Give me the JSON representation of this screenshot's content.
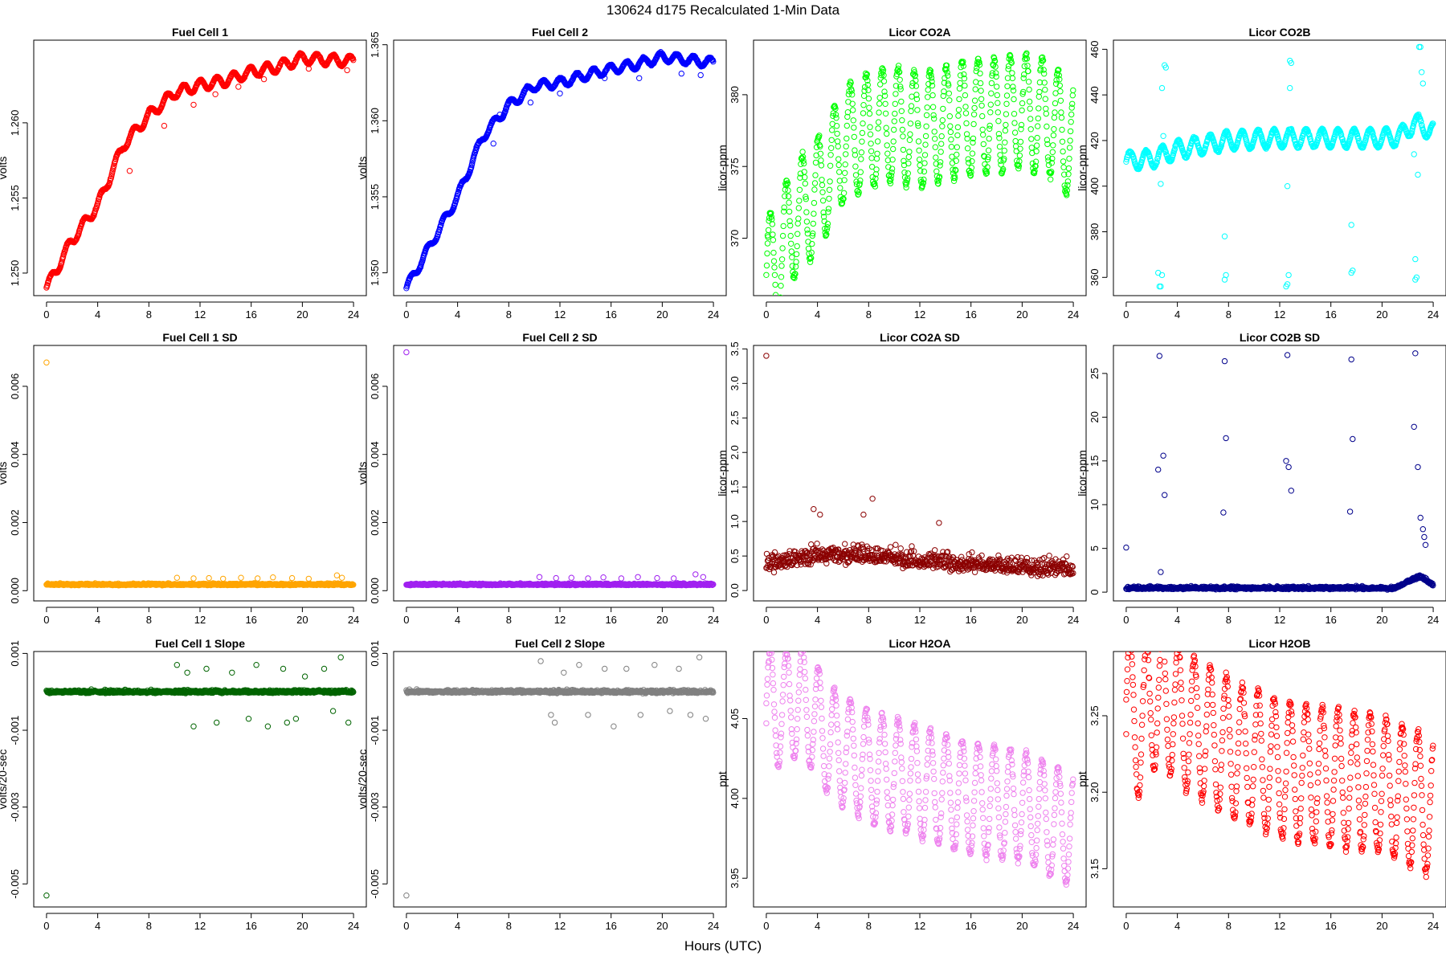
{
  "figure": {
    "title": "130624    d175    Recalculated 1-Min Data",
    "xlabel": "Hours (UTC)"
  },
  "chart_data": [
    {
      "type": "scatter",
      "title": "Fuel Cell 1",
      "ylabel": "volts",
      "color": "#ff0000",
      "xticks": [
        0,
        4,
        8,
        12,
        16,
        20,
        24
      ],
      "xlim": [
        -1,
        25
      ],
      "yticks": [
        1.25,
        1.255,
        1.26
      ],
      "ytick_labels": [
        "1.250",
        "1.255",
        "1.260"
      ],
      "ylim": [
        1.2485,
        1.2655
      ],
      "n": 1440,
      "base": [
        [
          0,
          1.249
        ],
        [
          2,
          1.2522
        ],
        [
          4,
          1.2545
        ],
        [
          6,
          1.2585
        ],
        [
          8,
          1.2605
        ],
        [
          10,
          1.262
        ],
        [
          12,
          1.2625
        ],
        [
          14,
          1.2628
        ],
        [
          16,
          1.2634
        ],
        [
          18,
          1.2637
        ],
        [
          20,
          1.2643
        ],
        [
          22,
          1.2642
        ],
        [
          24,
          1.2641
        ]
      ],
      "osc": {
        "amp": 0.00035,
        "period": 1.3
      },
      "outliers": [
        [
          6.5,
          1.2568
        ],
        [
          9.2,
          1.2598
        ],
        [
          11.5,
          1.2612
        ],
        [
          13.2,
          1.2619
        ],
        [
          17,
          1.2629
        ],
        [
          20.5,
          1.2636
        ],
        [
          23.5,
          1.2635
        ],
        [
          15,
          1.2624
        ]
      ]
    },
    {
      "type": "scatter",
      "title": "Fuel Cell 2",
      "ylabel": "volts",
      "color": "#0000ff",
      "xticks": [
        0,
        4,
        8,
        12,
        16,
        20,
        24
      ],
      "xlim": [
        -1,
        25
      ],
      "yticks": [
        1.35,
        1.355,
        1.36,
        1.365
      ],
      "ytick_labels": [
        "1.350",
        "1.355",
        "1.360",
        "1.365"
      ],
      "ylim": [
        1.3485,
        1.3653
      ],
      "n": 1440,
      "base": [
        [
          0,
          1.349
        ],
        [
          2,
          1.352
        ],
        [
          4,
          1.355
        ],
        [
          6,
          1.359
        ],
        [
          8,
          1.361
        ],
        [
          10,
          1.3623
        ],
        [
          12,
          1.3625
        ],
        [
          14,
          1.363
        ],
        [
          16,
          1.3634
        ],
        [
          18,
          1.3637
        ],
        [
          20,
          1.3642
        ],
        [
          22,
          1.364
        ],
        [
          24,
          1.3638
        ]
      ],
      "osc": {
        "amp": 0.0003,
        "period": 1.3
      },
      "outliers": [
        [
          7.3,
          1.3604
        ],
        [
          9.7,
          1.3612
        ],
        [
          12,
          1.3618
        ],
        [
          15.5,
          1.3628
        ],
        [
          18.2,
          1.3628
        ],
        [
          21.5,
          1.3631
        ],
        [
          23,
          1.363
        ],
        [
          6.8,
          1.3585
        ]
      ]
    },
    {
      "type": "scatter",
      "title": "Licor CO2A",
      "ylabel": "licor-ppm",
      "color": "#00ff00",
      "xticks": [
        0,
        4,
        8,
        12,
        16,
        20,
        24
      ],
      "xlim": [
        -1,
        25
      ],
      "yticks": [
        370,
        375,
        380
      ],
      "ytick_labels": [
        "370",
        "375",
        "380"
      ],
      "ylim": [
        366.0,
        383.8
      ],
      "n": 1440,
      "base": [
        [
          0,
          367.5
        ],
        [
          1,
          368.5
        ],
        [
          2,
          371
        ],
        [
          4,
          373
        ],
        [
          6,
          376.5
        ],
        [
          8,
          377.5
        ],
        [
          10,
          378
        ],
        [
          12,
          377.5
        ],
        [
          14,
          378
        ],
        [
          16,
          378.5
        ],
        [
          18,
          378.5
        ],
        [
          20,
          379
        ],
        [
          21,
          378.5
        ],
        [
          22,
          378.5
        ],
        [
          24,
          376.5
        ]
      ],
      "osc": {
        "amp": 4.0,
        "period": 1.25
      },
      "outliers": [
        [
          0.1,
          370.2
        ]
      ]
    },
    {
      "type": "scatter",
      "title": "Licor CO2B",
      "ylabel": "licor-ppm",
      "color": "#00ffff",
      "xticks": [
        0,
        4,
        8,
        12,
        16,
        20,
        24
      ],
      "xlim": [
        -1,
        25
      ],
      "yticks": [
        360,
        380,
        400,
        420,
        440,
        460
      ],
      "ytick_labels": [
        "360",
        "380",
        "400",
        "420",
        "440",
        "460"
      ],
      "ylim": [
        352,
        464
      ],
      "n": 1440,
      "base": [
        [
          0,
          411
        ],
        [
          2,
          412
        ],
        [
          4,
          416
        ],
        [
          8,
          420
        ],
        [
          12,
          421
        ],
        [
          16,
          421
        ],
        [
          20,
          421
        ],
        [
          21.5,
          422
        ],
        [
          22.5,
          428
        ],
        [
          24,
          424
        ]
      ],
      "osc": {
        "amp": 4.0,
        "period": 1.25
      },
      "outliers": [
        [
          2.6,
          356
        ],
        [
          2.7,
          356
        ],
        [
          2.5,
          362
        ],
        [
          2.8,
          361
        ],
        [
          2.9,
          422
        ],
        [
          3.0,
          453
        ],
        [
          3.1,
          452
        ],
        [
          2.7,
          401
        ],
        [
          2.8,
          443
        ],
        [
          7.7,
          359
        ],
        [
          7.8,
          361
        ],
        [
          7.7,
          378
        ],
        [
          12.6,
          357
        ],
        [
          12.5,
          356
        ],
        [
          12.7,
          361
        ],
        [
          12.6,
          400
        ],
        [
          12.8,
          443
        ],
        [
          12.9,
          454
        ],
        [
          12.8,
          455
        ],
        [
          17.6,
          362
        ],
        [
          17.7,
          363
        ],
        [
          17.6,
          383
        ],
        [
          22.6,
          359
        ],
        [
          22.7,
          360
        ],
        [
          22.6,
          368
        ],
        [
          22.8,
          405
        ],
        [
          22.9,
          461
        ],
        [
          23.0,
          461
        ],
        [
          23.1,
          450
        ],
        [
          23.2,
          445
        ],
        [
          22.5,
          414
        ]
      ]
    },
    {
      "type": "scatter",
      "title": "Fuel Cell 1 SD",
      "ylabel": "volts",
      "color": "#ffa500",
      "xticks": [
        0,
        4,
        8,
        12,
        16,
        20,
        24
      ],
      "xlim": [
        -1,
        25
      ],
      "yticks": [
        0.0,
        0.002,
        0.004,
        0.006
      ],
      "ytick_labels": [
        "0.000",
        "0.002",
        "0.004",
        "0.006"
      ],
      "ylim": [
        -0.0003,
        0.0072
      ],
      "n": 1440,
      "base": [
        [
          0,
          0.00018
        ],
        [
          24,
          0.00018
        ]
      ],
      "noise": 4e-05,
      "outliers": [
        [
          0,
          0.0067
        ],
        [
          10.2,
          0.00038
        ],
        [
          11.5,
          0.00036
        ],
        [
          12.7,
          0.00037
        ],
        [
          13.8,
          0.00035
        ],
        [
          15.2,
          0.00038
        ],
        [
          16.5,
          0.00036
        ],
        [
          17.7,
          0.00039
        ],
        [
          19.2,
          0.00037
        ],
        [
          20.5,
          0.00035
        ],
        [
          22.7,
          0.00045
        ],
        [
          23.1,
          0.00038
        ]
      ]
    },
    {
      "type": "scatter",
      "title": "Fuel Cell 2 SD",
      "ylabel": "volts",
      "color": "#a020f0",
      "xticks": [
        0,
        4,
        8,
        12,
        16,
        20,
        24
      ],
      "xlim": [
        -1,
        25
      ],
      "yticks": [
        0.0,
        0.002,
        0.004,
        0.006
      ],
      "ytick_labels": [
        "0.000",
        "0.002",
        "0.004",
        "0.006"
      ],
      "ylim": [
        -0.0003,
        0.0072
      ],
      "n": 1440,
      "base": [
        [
          0,
          0.00018
        ],
        [
          24,
          0.00018
        ]
      ],
      "noise": 4e-05,
      "outliers": [
        [
          0,
          0.007
        ],
        [
          10.4,
          0.0004
        ],
        [
          11.7,
          0.00037
        ],
        [
          12.9,
          0.00038
        ],
        [
          14.2,
          0.00036
        ],
        [
          15.4,
          0.00039
        ],
        [
          16.8,
          0.00036
        ],
        [
          18.1,
          0.0004
        ],
        [
          19.6,
          0.00037
        ],
        [
          20.9,
          0.00036
        ],
        [
          22.6,
          0.00048
        ],
        [
          23.2,
          0.0004
        ]
      ]
    },
    {
      "type": "scatter",
      "title": "Licor CO2A SD",
      "ylabel": "licor-ppm",
      "color": "#8b0000",
      "xticks": [
        0,
        4,
        8,
        12,
        16,
        20,
        24
      ],
      "xlim": [
        -1,
        25
      ],
      "yticks": [
        0.0,
        0.5,
        1.0,
        1.5,
        2.0,
        2.5,
        3.0,
        3.5
      ],
      "ytick_labels": [
        "0.0",
        "0.5",
        "1.0",
        "1.5",
        "2.0",
        "2.5",
        "3.0",
        "3.5"
      ],
      "ylim": [
        -0.15,
        3.55
      ],
      "n": 1440,
      "base": [
        [
          0,
          0.35
        ],
        [
          4,
          0.5
        ],
        [
          8,
          0.5
        ],
        [
          12,
          0.42
        ],
        [
          16,
          0.38
        ],
        [
          20,
          0.32
        ],
        [
          24,
          0.3
        ]
      ],
      "noise": 0.2,
      "outliers": [
        [
          0,
          3.4
        ],
        [
          8.3,
          1.33
        ],
        [
          3.7,
          1.18
        ],
        [
          7.6,
          1.1
        ],
        [
          13.5,
          0.98
        ],
        [
          4.2,
          1.1
        ]
      ]
    },
    {
      "type": "scatter",
      "title": "Licor CO2B SD",
      "ylabel": "licor-ppm",
      "color": "#00008b",
      "xticks": [
        0,
        4,
        8,
        12,
        16,
        20,
        24
      ],
      "xlim": [
        -1,
        25
      ],
      "yticks": [
        0,
        5,
        10,
        15,
        20,
        25
      ],
      "ytick_labels": [
        "0",
        "5",
        "10",
        "15",
        "20",
        "25"
      ],
      "ylim": [
        -1.0,
        28.2
      ],
      "n": 1440,
      "base": [
        [
          0,
          0.45
        ],
        [
          21,
          0.45
        ],
        [
          22,
          1.2
        ],
        [
          23,
          1.8
        ],
        [
          24,
          0.8
        ]
      ],
      "noise": 0.25,
      "outliers": [
        [
          0,
          5.1
        ],
        [
          2.6,
          27.0
        ],
        [
          2.5,
          14.0
        ],
        [
          2.9,
          15.6
        ],
        [
          3.0,
          11.1
        ],
        [
          2.7,
          2.3
        ],
        [
          7.7,
          26.4
        ],
        [
          7.8,
          17.6
        ],
        [
          7.6,
          9.1
        ],
        [
          12.6,
          27.1
        ],
        [
          12.5,
          15.0
        ],
        [
          12.7,
          14.3
        ],
        [
          12.9,
          11.6
        ],
        [
          17.6,
          26.6
        ],
        [
          17.7,
          17.5
        ],
        [
          17.5,
          9.2
        ],
        [
          22.6,
          27.3
        ],
        [
          22.5,
          18.9
        ],
        [
          22.8,
          14.3
        ],
        [
          23.0,
          8.5
        ],
        [
          23.2,
          7.2
        ],
        [
          23.3,
          6.3
        ],
        [
          23.4,
          5.4
        ]
      ]
    },
    {
      "type": "scatter",
      "title": "Fuel Cell 1 Slope",
      "ylabel": "volts/20-sec",
      "color": "#006400",
      "xticks": [
        0,
        4,
        8,
        12,
        16,
        20,
        24
      ],
      "xlim": [
        -1,
        25
      ],
      "yticks": [
        -0.005,
        -0.003,
        -0.001,
        0.001
      ],
      "ytick_labels": [
        "-0.005",
        "-0.003",
        "-0.001",
        "0.001"
      ],
      "ylim": [
        -0.0056,
        0.00105
      ],
      "n": 1440,
      "base": [
        [
          0,
          0.0
        ],
        [
          24,
          0.0
        ]
      ],
      "noise": 6e-05,
      "outliers": [
        [
          0,
          -0.0053
        ],
        [
          10.2,
          0.0007
        ],
        [
          11.5,
          -0.0009
        ],
        [
          12.5,
          0.0006
        ],
        [
          13.3,
          -0.0008
        ],
        [
          14.5,
          0.0005
        ],
        [
          15.8,
          -0.0007
        ],
        [
          16.4,
          0.0007
        ],
        [
          17.3,
          -0.0009
        ],
        [
          18.5,
          0.0006
        ],
        [
          19.5,
          -0.0007
        ],
        [
          20.2,
          0.0004
        ],
        [
          21.7,
          0.0006
        ],
        [
          22.4,
          -0.0005
        ],
        [
          23.0,
          0.0009
        ],
        [
          23.6,
          -0.0008
        ],
        [
          11.0,
          0.0005
        ],
        [
          18.8,
          -0.0008
        ]
      ]
    },
    {
      "type": "scatter",
      "title": "Fuel Cell 2 Slope",
      "ylabel": "volts/20-sec",
      "color": "#808080",
      "xticks": [
        0,
        4,
        8,
        12,
        16,
        20,
        24
      ],
      "xlim": [
        -1,
        25
      ],
      "yticks": [
        -0.005,
        -0.003,
        -0.001,
        0.001
      ],
      "ytick_labels": [
        "-0.005",
        "-0.003",
        "-0.001",
        "0.001"
      ],
      "ylim": [
        -0.0056,
        0.00105
      ],
      "n": 1440,
      "base": [
        [
          0,
          0.0
        ],
        [
          24,
          0.0
        ]
      ],
      "noise": 6e-05,
      "outliers": [
        [
          0,
          -0.0053
        ],
        [
          10.5,
          0.0008
        ],
        [
          11.6,
          -0.0008
        ],
        [
          12.3,
          0.0005
        ],
        [
          13.5,
          0.0007
        ],
        [
          14.2,
          -0.0006
        ],
        [
          15.5,
          0.0006
        ],
        [
          16.2,
          -0.0009
        ],
        [
          17.2,
          0.0006
        ],
        [
          18.3,
          -0.0006
        ],
        [
          19.4,
          0.0007
        ],
        [
          20.6,
          -0.0005
        ],
        [
          21.3,
          0.0006
        ],
        [
          22.2,
          -0.0006
        ],
        [
          22.9,
          0.0009
        ],
        [
          23.4,
          -0.0007
        ],
        [
          11.3,
          -0.0006
        ]
      ]
    },
    {
      "type": "scatter",
      "title": "Licor H2OA",
      "ylabel": "ppt",
      "color": "#ee82ee",
      "xticks": [
        0,
        4,
        8,
        12,
        16,
        20,
        24
      ],
      "xlim": [
        -1,
        25
      ],
      "yticks": [
        3.95,
        4.0,
        4.05
      ],
      "ytick_labels": [
        "3.95",
        "4.00",
        "4.05"
      ],
      "ylim": [
        3.932,
        4.092
      ],
      "n": 1440,
      "base": [
        [
          0,
          4.06
        ],
        [
          1,
          4.055
        ],
        [
          2,
          4.06
        ],
        [
          3,
          4.06
        ],
        [
          5,
          4.035
        ],
        [
          8,
          4.02
        ],
        [
          12,
          4.01
        ],
        [
          16,
          4.0
        ],
        [
          20,
          3.995
        ],
        [
          24,
          3.98
        ]
      ],
      "osc": {
        "amp": 0.035,
        "period": 1.25
      },
      "outliers": [
        [
          0,
          4.047
        ]
      ]
    },
    {
      "type": "scatter",
      "title": "Licor H2OB",
      "ylabel": "ppt",
      "color": "#ff0000",
      "xticks": [
        0,
        4,
        8,
        12,
        16,
        20,
        24
      ],
      "xlim": [
        -1,
        25
      ],
      "yticks": [
        3.15,
        3.2,
        3.25
      ],
      "ytick_labels": [
        "3.15",
        "3.20",
        "3.25"
      ],
      "ylim": [
        3.125,
        3.292
      ],
      "n": 1440,
      "base": [
        [
          0,
          3.26
        ],
        [
          1,
          3.24
        ],
        [
          2,
          3.26
        ],
        [
          3,
          3.26
        ],
        [
          5,
          3.245
        ],
        [
          8,
          3.23
        ],
        [
          12,
          3.215
        ],
        [
          16,
          3.21
        ],
        [
          20,
          3.205
        ],
        [
          24,
          3.19
        ]
      ],
      "osc": {
        "amp": 0.045,
        "period": 1.25
      },
      "outliers": [
        [
          0,
          3.238
        ]
      ]
    }
  ]
}
